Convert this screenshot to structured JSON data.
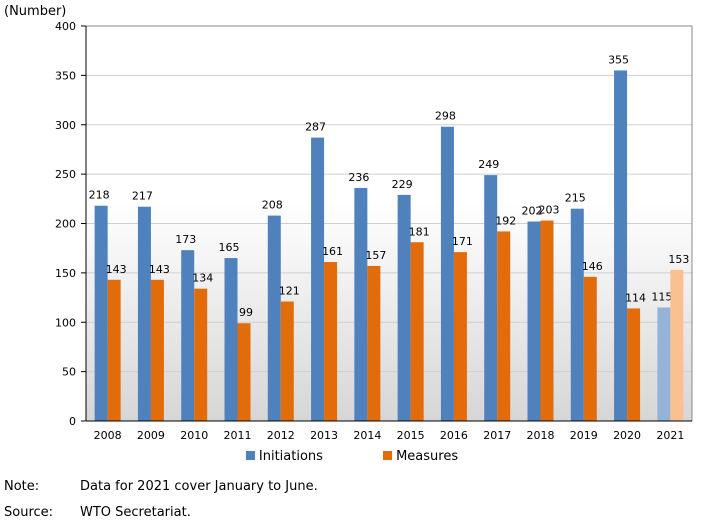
{
  "unit_label": "(Number)",
  "note": {
    "key": "Note:",
    "text": "Data for 2021 cover January to June."
  },
  "source": {
    "key": "Source:",
    "text": "WTO Secretariat."
  },
  "colors": {
    "initiations": "#4f81bd",
    "measures": "#e36c0a",
    "initiations_partial": "#95b3d7",
    "measures_partial": "#fac090"
  },
  "chart_data": {
    "type": "bar",
    "categories": [
      "2008",
      "2009",
      "2010",
      "2011",
      "2012",
      "2013",
      "2014",
      "2015",
      "2016",
      "2017",
      "2018",
      "2019",
      "2020",
      "2021"
    ],
    "series": [
      {
        "name": "Initiations",
        "legend_label": "Initiations",
        "values": [
          218,
          217,
          173,
          165,
          208,
          287,
          236,
          229,
          298,
          249,
          202,
          215,
          355,
          115
        ]
      },
      {
        "name": "Measures",
        "legend_label": "Measures",
        "values": [
          143,
          143,
          134,
          99,
          121,
          161,
          157,
          181,
          171,
          192,
          203,
          146,
          114,
          153
        ]
      }
    ],
    "partial_category": "2021",
    "ylim": [
      0,
      400
    ],
    "yticks": [
      0,
      50,
      100,
      150,
      200,
      250,
      300,
      350,
      400
    ],
    "grid": true,
    "legend_position": "bottom"
  }
}
